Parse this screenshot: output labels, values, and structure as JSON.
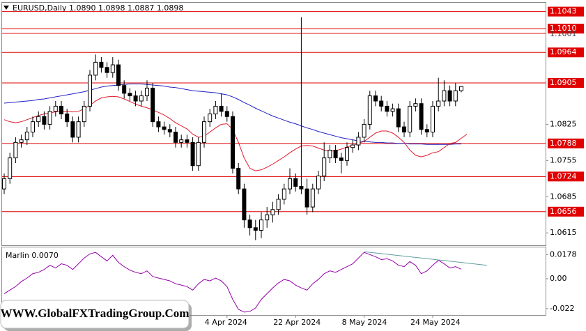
{
  "chart_data": [
    {
      "type": "candlestick",
      "title": "EURUSD,Daily  1.0890 1.0898 1.0887 1.0898",
      "categories": [
        null,
        null,
        null,
        null,
        null,
        null,
        null,
        null,
        null,
        null,
        null,
        null,
        null,
        null,
        null,
        null,
        null,
        null,
        null,
        null,
        null,
        null,
        null,
        null,
        null,
        null,
        null,
        null,
        null,
        null,
        null,
        null,
        null,
        null,
        null,
        null,
        null,
        null,
        null,
        "4 Apr 2024",
        null,
        null,
        null,
        null,
        null,
        null,
        null,
        null,
        null,
        null,
        null,
        "22 Apr 2024",
        null,
        null,
        null,
        null,
        null,
        null,
        null,
        null,
        null,
        null,
        null,
        "8 May 2024",
        null,
        null,
        null,
        null,
        null,
        null,
        null,
        null,
        null,
        null,
        null,
        "24 May 2024",
        null,
        null,
        null,
        null,
        null
      ],
      "open": [
        1.07,
        1.072,
        1.076,
        1.079,
        1.0795,
        1.081,
        1.083,
        1.084,
        1.0825,
        1.085,
        1.086,
        1.0845,
        1.083,
        1.08,
        1.083,
        1.086,
        1.092,
        1.0945,
        1.0935,
        1.0925,
        1.094,
        1.09,
        1.0885,
        1.088,
        1.087,
        1.088,
        1.0895,
        1.083,
        1.082,
        1.0815,
        1.081,
        1.079,
        1.0795,
        1.079,
        1.0745,
        1.079,
        1.083,
        1.0845,
        1.086,
        1.085,
        1.084,
        1.074,
        1.07,
        1.064,
        1.0625,
        1.062,
        1.064,
        1.065,
        1.066,
        1.068,
        1.07,
        1.072,
        1.0705,
        1.07,
        1.0665,
        1.07,
        1.0725,
        1.076,
        1.0775,
        1.076,
        1.0755,
        1.078,
        1.0785,
        1.08,
        1.0825,
        1.088,
        1.087,
        1.086,
        1.085,
        1.0855,
        1.082,
        1.081,
        1.086,
        1.0865,
        1.0815,
        1.081,
        1.086,
        1.087,
        1.089,
        1.087,
        1.089
      ],
      "high": [
        1.073,
        1.077,
        1.08,
        1.0805,
        1.082,
        1.084,
        1.085,
        1.085,
        1.086,
        1.087,
        1.087,
        1.0855,
        1.084,
        1.084,
        1.087,
        1.093,
        1.096,
        1.0955,
        1.0945,
        1.0955,
        1.095,
        1.091,
        1.0895,
        1.089,
        1.089,
        1.091,
        1.0905,
        1.084,
        1.083,
        1.0825,
        1.082,
        1.0805,
        1.0805,
        1.08,
        1.08,
        1.084,
        1.0855,
        1.087,
        1.0885,
        1.086,
        1.085,
        1.075,
        1.071,
        1.065,
        1.064,
        1.0655,
        1.0665,
        1.0675,
        1.069,
        1.071,
        1.074,
        1.073,
        1.1032,
        1.072,
        1.071,
        1.0735,
        1.079,
        1.0785,
        1.0785,
        1.077,
        1.079,
        1.0795,
        1.081,
        1.0835,
        1.089,
        1.089,
        1.088,
        1.087,
        1.0865,
        1.0865,
        1.083,
        1.087,
        1.0875,
        1.0875,
        1.0825,
        1.087,
        1.0915,
        1.091,
        1.09,
        1.0905,
        1.0898
      ],
      "low": [
        1.069,
        1.071,
        1.075,
        1.078,
        1.0785,
        1.08,
        1.082,
        1.0815,
        1.0815,
        1.084,
        1.0835,
        1.082,
        1.079,
        1.079,
        1.082,
        1.085,
        1.091,
        1.0925,
        1.0915,
        1.0915,
        1.089,
        1.0875,
        1.087,
        1.086,
        1.086,
        1.087,
        1.082,
        1.081,
        1.0805,
        1.08,
        1.078,
        1.078,
        1.078,
        1.0735,
        1.0735,
        1.078,
        1.082,
        1.0835,
        1.084,
        1.083,
        1.073,
        1.069,
        1.0625,
        1.061,
        1.0601,
        1.0605,
        1.0625,
        1.0635,
        1.065,
        1.067,
        1.069,
        1.0695,
        1.069,
        1.065,
        1.0655,
        1.069,
        1.0715,
        1.075,
        1.075,
        1.073,
        1.0745,
        1.077,
        1.0775,
        1.079,
        1.0815,
        1.086,
        1.085,
        1.084,
        1.084,
        1.081,
        1.08,
        1.08,
        1.085,
        1.0805,
        1.08,
        1.08,
        1.085,
        1.086,
        1.086,
        1.086,
        1.0887
      ],
      "close": [
        1.072,
        1.076,
        1.079,
        1.0795,
        1.081,
        1.083,
        1.084,
        1.0825,
        1.085,
        1.086,
        1.0845,
        1.083,
        1.08,
        1.083,
        1.086,
        1.092,
        1.0945,
        1.0935,
        1.0925,
        1.094,
        1.09,
        1.0885,
        1.088,
        1.087,
        1.088,
        1.0895,
        1.083,
        1.082,
        1.0815,
        1.081,
        1.079,
        1.0795,
        1.079,
        1.0745,
        1.079,
        1.083,
        1.0845,
        1.086,
        1.085,
        1.084,
        1.074,
        1.07,
        1.064,
        1.0625,
        1.062,
        1.064,
        1.065,
        1.066,
        1.068,
        1.07,
        1.072,
        1.0705,
        1.07,
        1.0665,
        1.07,
        1.0725,
        1.076,
        1.0775,
        1.076,
        1.0755,
        1.078,
        1.0785,
        1.08,
        1.0825,
        1.088,
        1.087,
        1.086,
        1.085,
        1.0855,
        1.082,
        1.081,
        1.086,
        1.0865,
        1.0815,
        1.081,
        1.086,
        1.087,
        1.089,
        1.087,
        1.089,
        1.0898
      ],
      "ma": [
        {
          "color": "#1f1fbf",
          "values": [
            1.0866,
            1.0867,
            1.0868,
            1.0869,
            1.087,
            1.0871,
            1.0873,
            1.0874,
            1.0876,
            1.0878,
            1.088,
            1.0882,
            1.0884,
            1.0886,
            1.0888,
            1.0891,
            1.0894,
            1.0897,
            1.0899,
            1.09,
            1.0901,
            1.0902,
            1.0903,
            1.0903,
            1.0903,
            1.0902,
            1.0901,
            1.09,
            1.0899,
            1.0897,
            1.0896,
            1.0894,
            1.0892,
            1.089,
            1.0889,
            1.0888,
            1.0887,
            1.0886,
            1.0884,
            1.0882,
            1.0878,
            1.0873,
            1.0867,
            1.0862,
            1.0856,
            1.0851,
            1.0846,
            1.0841,
            1.0837,
            1.0833,
            1.0829,
            1.0826,
            1.0822,
            1.0818,
            1.0815,
            1.0811,
            1.0808,
            1.0805,
            1.0802,
            1.0799,
            1.0797,
            1.0795,
            1.0793,
            1.0792,
            1.0791,
            1.079,
            1.079,
            1.0789,
            1.0789,
            1.0788,
            1.0788,
            1.0787,
            1.0787,
            1.0787,
            1.0786,
            1.0786,
            1.0786,
            1.0786,
            1.0786,
            1.0787,
            1.0787
          ]
        },
        {
          "color": "#e01a2a",
          "values": [
            1.0834,
            1.083,
            1.0828,
            1.083,
            1.0834,
            1.0838,
            1.0842,
            1.0845,
            1.0847,
            1.0849,
            1.085,
            1.085,
            1.0849,
            1.085,
            1.0855,
            1.0862,
            1.087,
            1.0876,
            1.0878,
            1.0879,
            1.0878,
            1.0874,
            1.0869,
            1.0864,
            1.086,
            1.0857,
            1.0853,
            1.0848,
            1.0843,
            1.0836,
            1.0828,
            1.0822,
            1.0816,
            1.0806,
            1.08,
            1.0802,
            1.081,
            1.0818,
            1.0825,
            1.0826,
            1.0815,
            1.079,
            1.076,
            1.074,
            1.0735,
            1.0737,
            1.0742,
            1.0748,
            1.0755,
            1.0762,
            1.077,
            1.0777,
            1.0783,
            1.0784,
            1.0783,
            1.0779,
            1.0775,
            1.0773,
            1.0774,
            1.0777,
            1.0781,
            1.0784,
            1.0788,
            1.0792,
            1.08,
            1.0808,
            1.0812,
            1.0812,
            1.0808,
            1.08,
            1.079,
            1.0775,
            1.0765,
            1.0762,
            1.0765,
            1.077,
            1.0772,
            1.078,
            1.0788,
            1.079,
            1.0798,
            1.0806
          ]
        }
      ],
      "levels": [
        {
          "value": 1.1043,
          "label": "1.1043",
          "boxed": true
        },
        {
          "value": 1.101,
          "label": "1.1010",
          "boxed": true
        },
        {
          "value": 1.1001,
          "label": "1.1001",
          "boxed": false
        },
        {
          "value": 1.0964,
          "label": "1.0964",
          "boxed": true
        },
        {
          "value": 1.0905,
          "label": "1.0905",
          "boxed": true
        },
        {
          "value": 1.0788,
          "label": "1.0788",
          "boxed": true
        },
        {
          "value": 1.0724,
          "label": "1.0724",
          "boxed": true
        },
        {
          "value": 1.0656,
          "label": "1.0656",
          "boxed": true
        }
      ],
      "level_color": "#e00000",
      "ylim": [
        1.0591,
        1.106
      ],
      "yticks": [
        1.0825,
        1.0755,
        1.0685,
        1.0615
      ]
    },
    {
      "type": "line",
      "title": "Marlin 0.0070",
      "color": "#9400a8",
      "values": [
        -0.011,
        -0.0084,
        -0.0058,
        -0.0021,
        0.0005,
        0.0037,
        0.0047,
        0.0068,
        0.0099,
        0.0079,
        0.011,
        0.0099,
        0.0068,
        0.011,
        0.0152,
        0.0183,
        0.0194,
        0.0162,
        0.0131,
        0.0173,
        0.012,
        0.0089,
        0.0063,
        0.0047,
        0.0037,
        0.0058,
        0.0016,
        0.0005,
        -0.0005,
        -0.0016,
        -0.0037,
        -0.0047,
        -0.0058,
        -0.0084,
        -0.0037,
        -0.0005,
        -0.0016,
        0.0005,
        -0.0016,
        -0.0058,
        -0.0152,
        -0.0225,
        -0.0246,
        -0.0241,
        -0.0215,
        -0.0152,
        -0.011,
        -0.0068,
        -0.0031,
        -0.0005,
        -0.0016,
        -0.0047,
        -0.0068,
        -0.0084,
        -0.0037,
        -0.0005,
        0.0037,
        0.0058,
        0.0047,
        0.0068,
        0.0089,
        0.011,
        0.0152,
        0.0194,
        0.0178,
        0.0162,
        0.0141,
        0.0147,
        0.0131,
        0.0099,
        0.0089,
        0.0126,
        0.0099,
        0.0037,
        0.0058,
        0.0099,
        0.0136,
        0.011,
        0.0079,
        0.0089,
        0.007
      ],
      "trendline": {
        "color": "#5f9ea0",
        "x": [
          63,
          84.5
        ],
        "y": [
          0.0199,
          0.0099
        ]
      },
      "ylim": [
        -0.0267,
        0.0236
      ],
      "yticks": [
        0.0178,
        {
          "value": 0,
          "label": "0.00"
        },
        -0.022
      ]
    }
  ],
  "watermark": "WWW.GlobalFXTradingGroup.Com"
}
